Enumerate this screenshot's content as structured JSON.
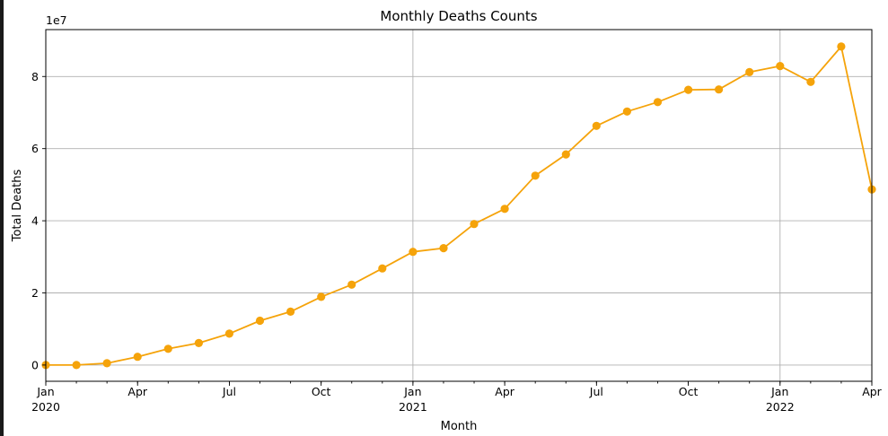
{
  "chart_data": {
    "type": "line",
    "title": "Monthly Deaths Counts",
    "xlabel": "Month",
    "ylabel": "Total Deaths",
    "y_offset_label": "1e7",
    "ylim": [
      -0.45,
      9.3
    ],
    "y_scale_note": "values in units of 1e7",
    "yticks": [
      0,
      2,
      4,
      6,
      8
    ],
    "xlim": [
      "2020-01",
      "2022-04"
    ],
    "xtick_labels": [
      {
        "month": "2020-01",
        "label": "Jan",
        "sublabel": "2020"
      },
      {
        "month": "2020-04",
        "label": "Apr",
        "sublabel": ""
      },
      {
        "month": "2020-07",
        "label": "Jul",
        "sublabel": ""
      },
      {
        "month": "2020-10",
        "label": "Oct",
        "sublabel": ""
      },
      {
        "month": "2021-01",
        "label": "Jan",
        "sublabel": "2021"
      },
      {
        "month": "2021-04",
        "label": "Apr",
        "sublabel": ""
      },
      {
        "month": "2021-07",
        "label": "Jul",
        "sublabel": ""
      },
      {
        "month": "2021-10",
        "label": "Oct",
        "sublabel": ""
      },
      {
        "month": "2022-01",
        "label": "Jan",
        "sublabel": "2022"
      },
      {
        "month": "2022-04",
        "label": "Apr",
        "sublabel": ""
      }
    ],
    "major_grid_months": [
      "2021-01",
      "2022-01"
    ],
    "grid": true,
    "color": "#f5a30a",
    "series": [
      {
        "x": [
          "2020-01",
          "2020-02",
          "2020-03",
          "2020-04",
          "2020-05",
          "2020-06",
          "2020-07",
          "2020-08",
          "2020-09",
          "2020-10",
          "2020-11",
          "2020-12",
          "2021-01",
          "2021-02",
          "2021-03",
          "2021-04",
          "2021-05",
          "2021-06",
          "2021-07",
          "2021-08",
          "2021-09",
          "2021-10",
          "2021-11",
          "2021-12",
          "2022-01",
          "2022-02",
          "2022-03",
          "2022-04"
        ],
        "y": [
          0.0,
          0.0,
          0.05,
          0.23,
          0.45,
          0.61,
          0.87,
          1.23,
          1.48,
          1.89,
          2.23,
          2.68,
          3.14,
          3.24,
          3.91,
          4.33,
          5.25,
          5.84,
          6.63,
          7.03,
          7.29,
          7.63,
          7.64,
          8.12,
          8.29,
          7.85,
          8.83,
          4.87
        ]
      }
    ]
  }
}
